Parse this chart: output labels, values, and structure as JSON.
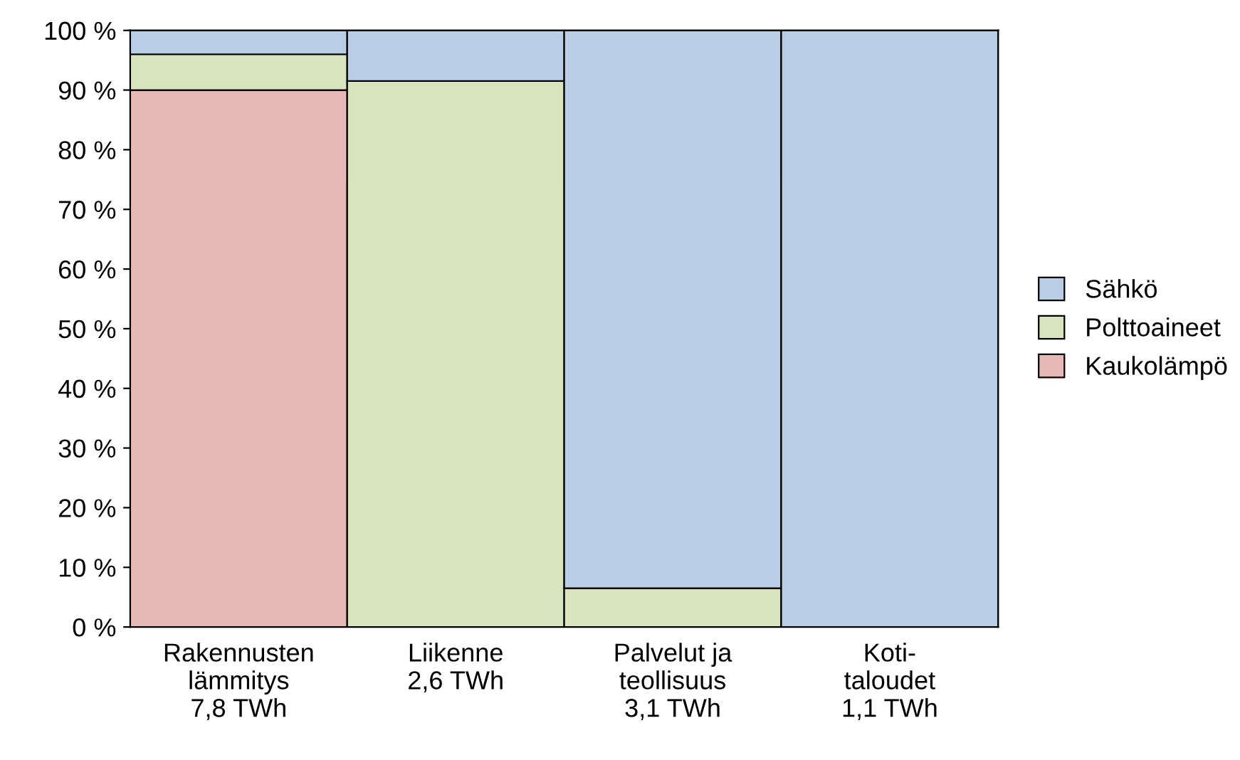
{
  "chart_data": {
    "type": "bar",
    "stacked": true,
    "categories": [
      "Rakennusten\nlämmitys\n7,8 TWh",
      "Liikenne\n2,6 TWh",
      "Palvelut ja\nteollisuus\n3,1 TWh",
      "Koti-\ntaloudet\n1,1 TWh"
    ],
    "series": [
      {
        "name": "Kaukolämpö",
        "color": "#e6b9b8",
        "values": [
          90,
          0,
          0,
          0
        ]
      },
      {
        "name": "Polttoaineet",
        "color": "#d7e4bd",
        "values": [
          6,
          91.5,
          6.5,
          0
        ]
      },
      {
        "name": "Sähkö",
        "color": "#b9cde5",
        "values": [
          4,
          8.5,
          93.5,
          100
        ]
      }
    ],
    "ylim": [
      0,
      100
    ],
    "yticks": [
      {
        "value": 0,
        "label": "0 %"
      },
      {
        "value": 10,
        "label": "10 %"
      },
      {
        "value": 20,
        "label": "20 %"
      },
      {
        "value": 30,
        "label": "30 %"
      },
      {
        "value": 40,
        "label": "40 %"
      },
      {
        "value": 50,
        "label": "50 %"
      },
      {
        "value": 60,
        "label": "60 %"
      },
      {
        "value": 70,
        "label": "70 %"
      },
      {
        "value": 80,
        "label": "80 %"
      },
      {
        "value": 90,
        "label": "90 %"
      },
      {
        "value": 100,
        "label": "100 %"
      }
    ],
    "grid": false,
    "legend": "right"
  }
}
